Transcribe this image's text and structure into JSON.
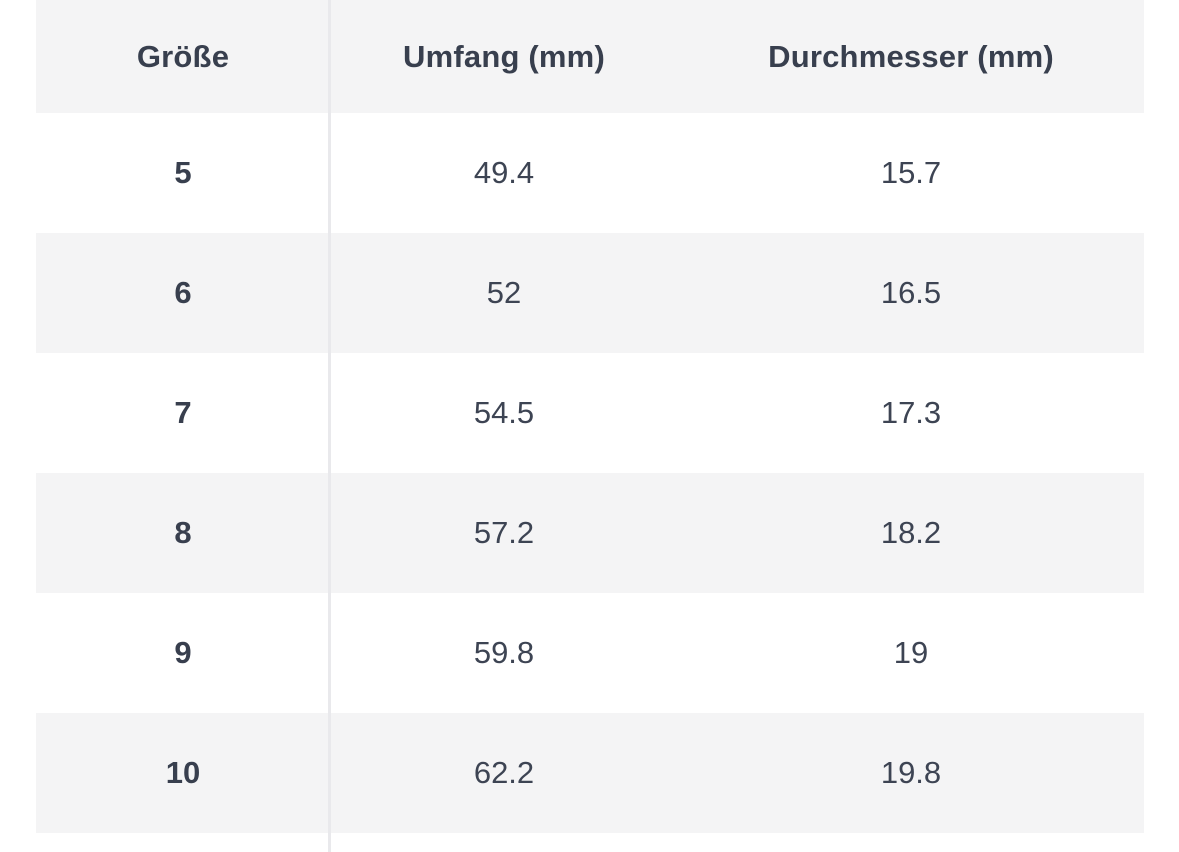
{
  "table": {
    "columns": {
      "size_label": "Größe",
      "circumference_label": "Umfang (mm)",
      "diameter_label": "Durchmesser (mm)"
    },
    "rows": [
      {
        "size": "5",
        "circumference": "49.4",
        "diameter": "15.7"
      },
      {
        "size": "6",
        "circumference": "52",
        "diameter": "16.5"
      },
      {
        "size": "7",
        "circumference": "54.5",
        "diameter": "17.3"
      },
      {
        "size": "8",
        "circumference": "57.2",
        "diameter": "18.2"
      },
      {
        "size": "9",
        "circumference": "59.8",
        "diameter": "19"
      },
      {
        "size": "10",
        "circumference": "62.2",
        "diameter": "19.8"
      }
    ],
    "colors": {
      "header_background": "#f4f4f5",
      "stripe_background": "#f4f4f5",
      "divider": "#e9e9ec",
      "header_text": "#383f4e",
      "body_text": "#3d4453",
      "page_background": "#ffffff"
    }
  }
}
